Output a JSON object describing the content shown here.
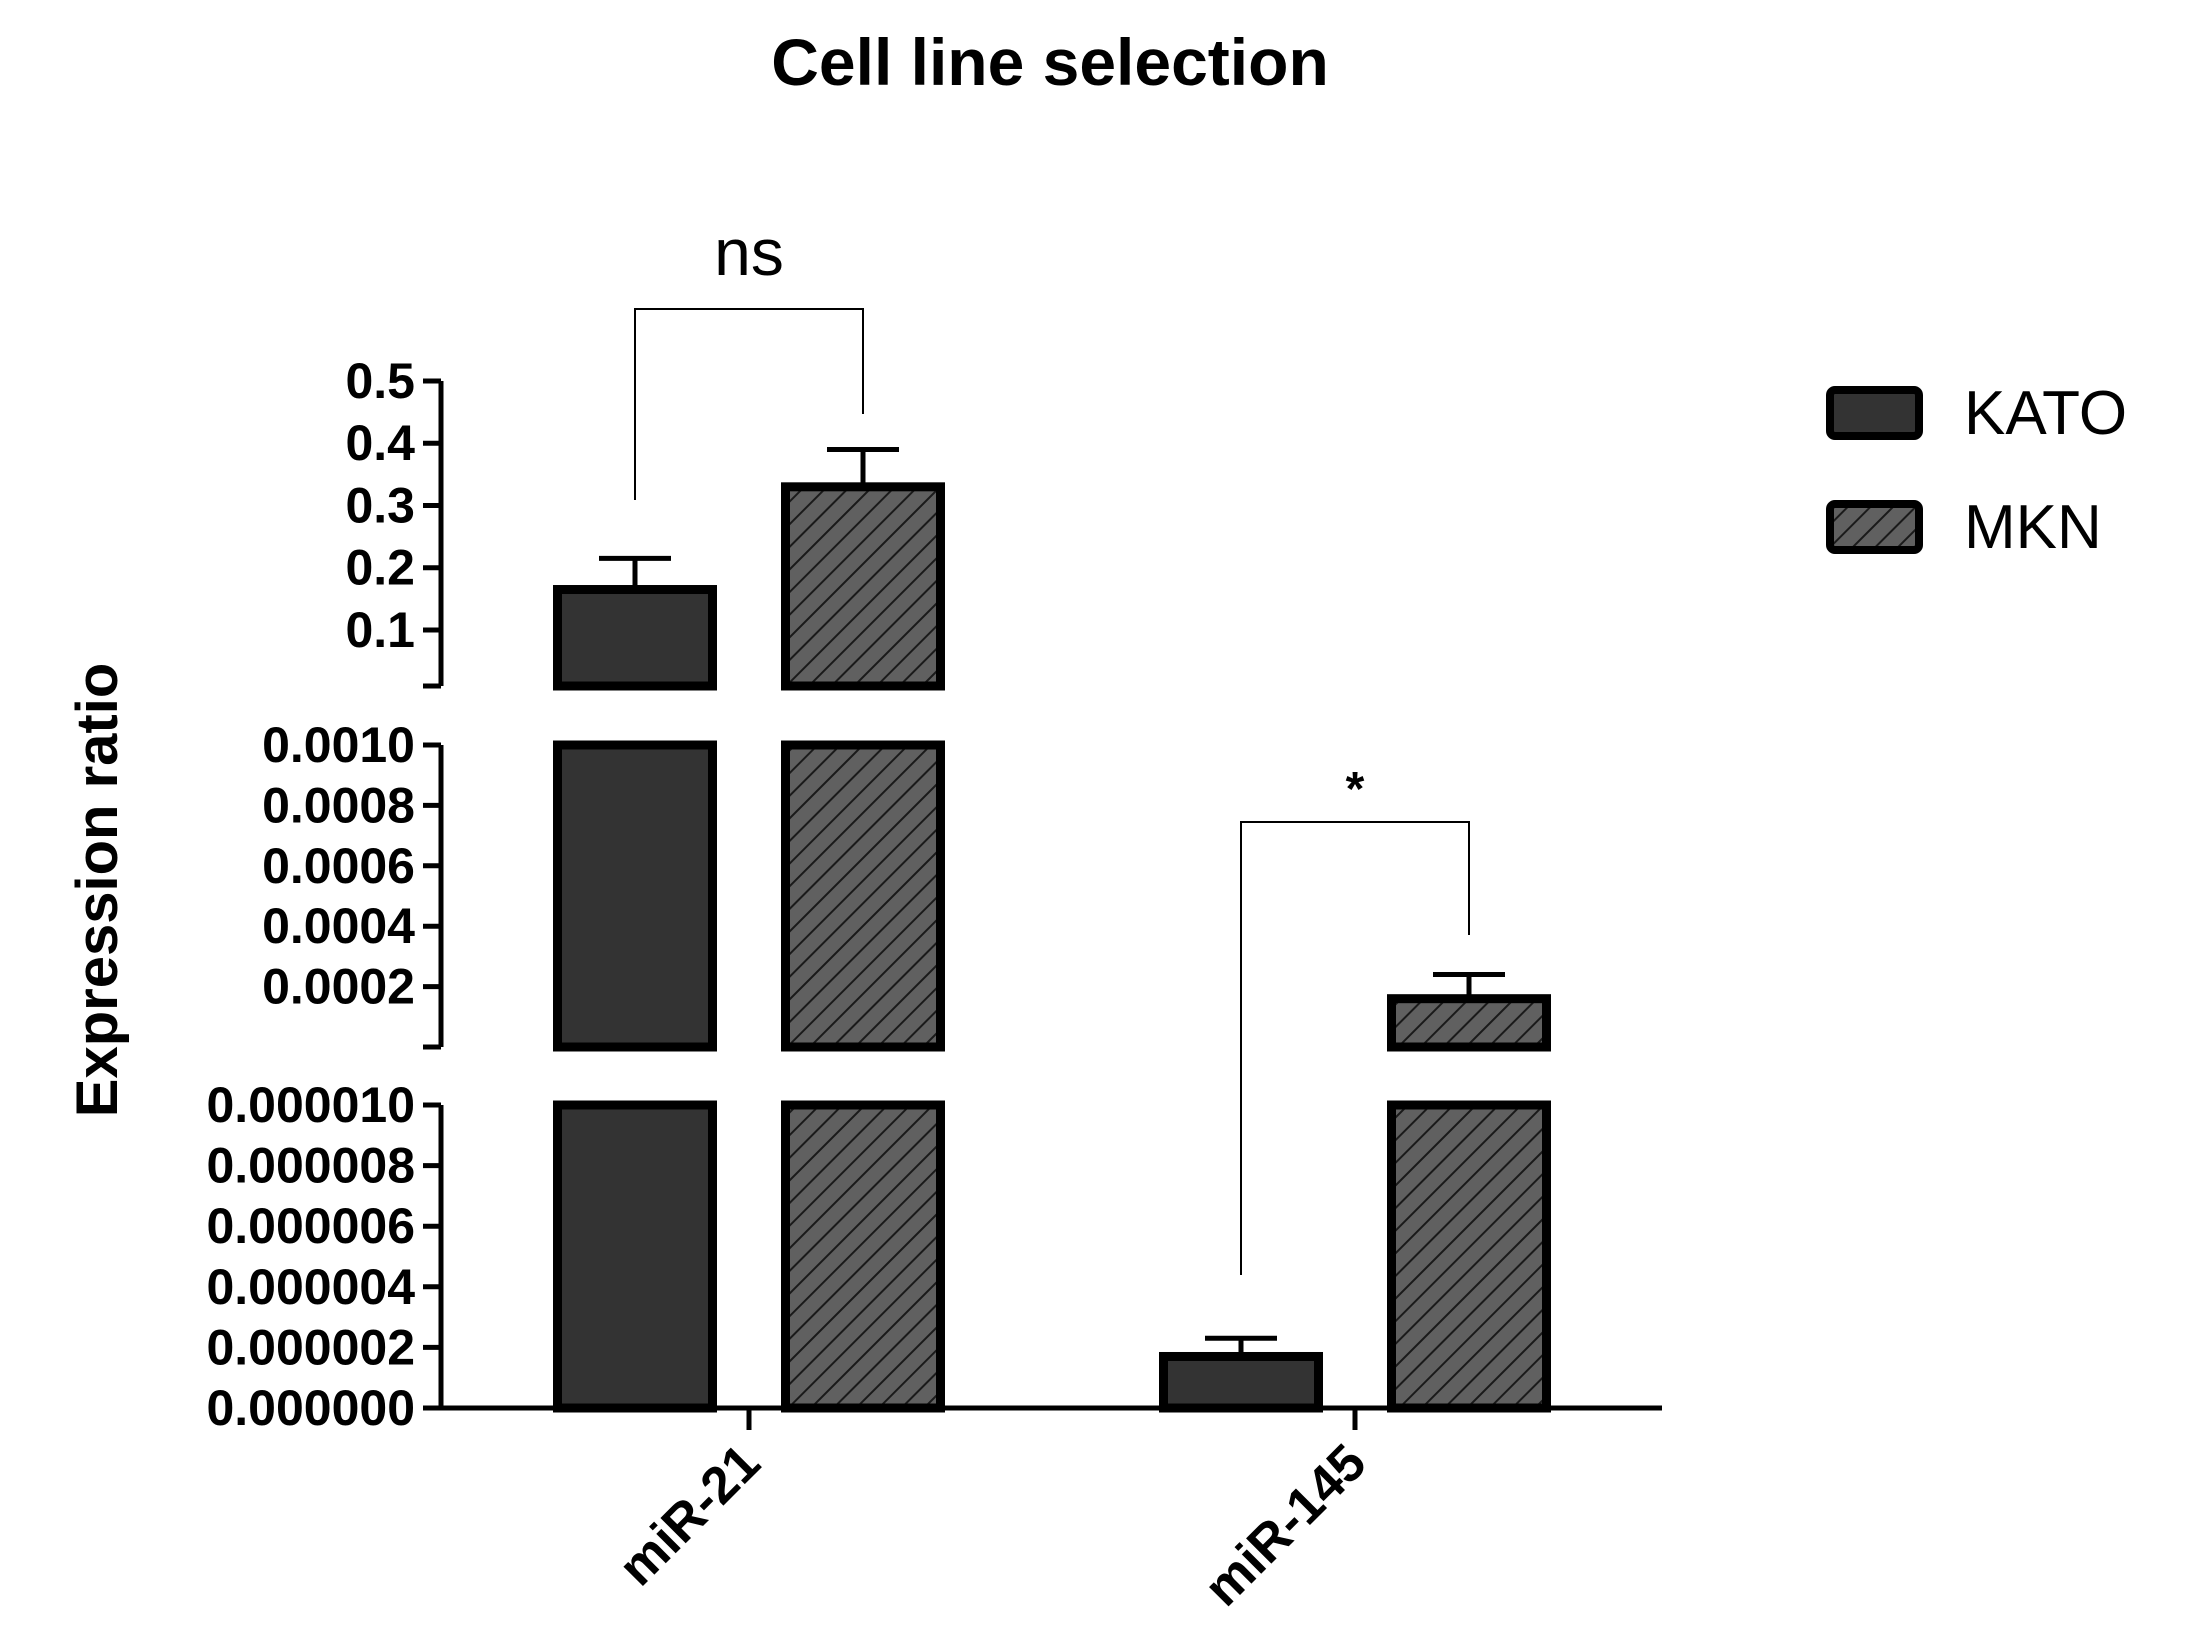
{
  "chart_data": {
    "type": "bar",
    "title": "Cell line selection",
    "xlabel": "",
    "ylabel": "Expression ratio",
    "categories": [
      "miR-21",
      "miR-145"
    ],
    "series": [
      {
        "name": "KATO",
        "values": [
          0.165,
          1.7e-06
        ],
        "errors": [
          0.05,
          6e-07
        ],
        "color": "#333333",
        "pattern": "solid"
      },
      {
        "name": "MKN",
        "values": [
          0.33,
          0.00016
        ],
        "errors": [
          0.06,
          8e-05
        ],
        "color": "#606060",
        "pattern": "hatch"
      }
    ],
    "axis_segments": [
      {
        "range": [
          0,
          1e-05
        ],
        "ticks": [
          0.0,
          2e-06,
          4e-06,
          6e-06,
          8e-06,
          1e-05
        ],
        "tick_labels": [
          "0.000000",
          "0.000002",
          "0.000004",
          "0.000006",
          "0.000008",
          "0.000010"
        ]
      },
      {
        "range": [
          0,
          0.001
        ],
        "ticks": [
          0.0002,
          0.0004,
          0.0006,
          0.0008,
          0.001
        ],
        "tick_labels": [
          "0.0002",
          "0.0004",
          "0.0006",
          "0.0008",
          "0.0010"
        ]
      },
      {
        "range": [
          0.01,
          0.5
        ],
        "ticks": [
          0.1,
          0.2,
          0.3,
          0.4,
          0.5
        ],
        "tick_labels": [
          "0.1",
          "0.2",
          "0.3",
          "0.4",
          "0.5"
        ]
      }
    ],
    "annotations": [
      {
        "category": "miR-21",
        "text": "ns"
      },
      {
        "category": "miR-145",
        "text": "*"
      }
    ],
    "legend_position": "top-right"
  }
}
